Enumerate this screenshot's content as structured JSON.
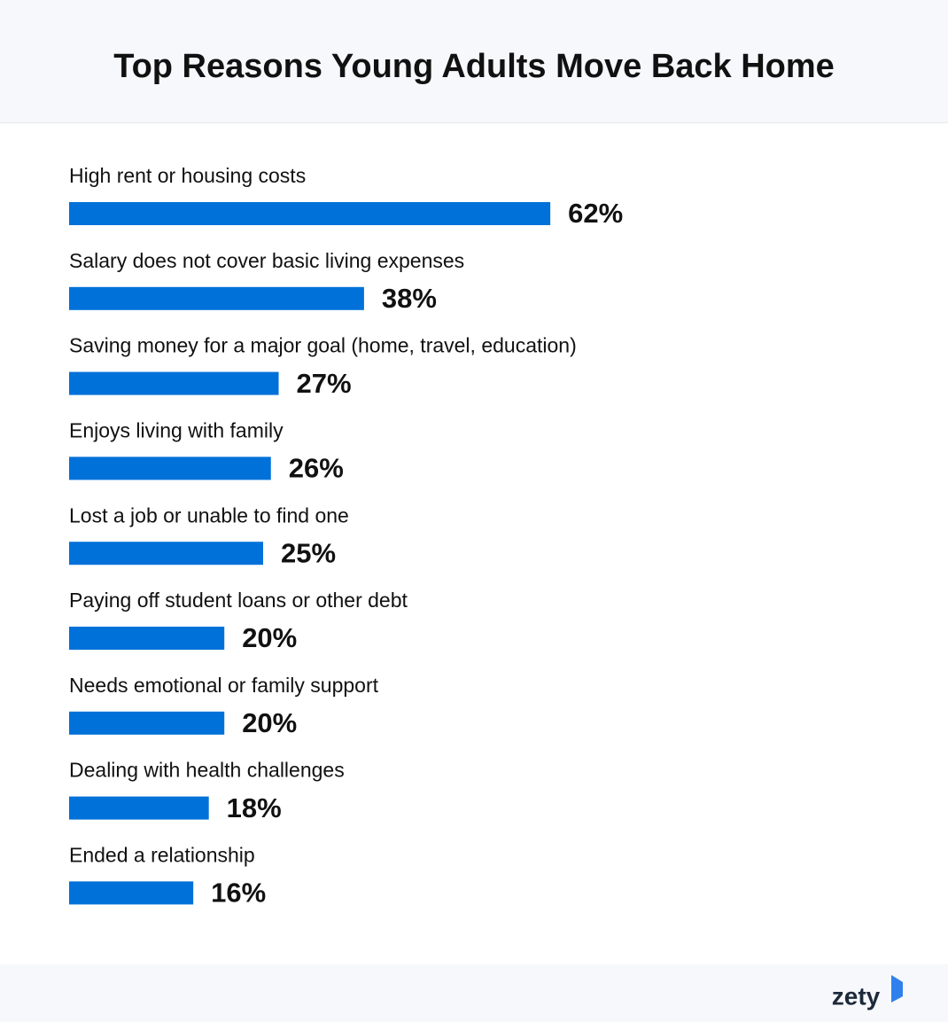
{
  "chart_data": {
    "type": "hbar",
    "title": "Top Reasons Young Adults Move Back Home",
    "categories": [
      "High rent or housing costs",
      "Salary does not cover basic living expenses",
      "Saving money for a major goal (home, travel, education)",
      "Enjoys living with family",
      "Lost a job or unable to find one",
      "Paying off student loans or other debt",
      "Needs emotional or family support",
      "Dealing with health challenges",
      "Ended a relationship"
    ],
    "values": [
      62,
      38,
      27,
      26,
      25,
      20,
      20,
      18,
      16
    ],
    "value_labels": [
      "62%",
      "38%",
      "27%",
      "26%",
      "25%",
      "20%",
      "20%",
      "18%",
      "16%"
    ],
    "color": "#0071d9"
  },
  "brand": "zety"
}
